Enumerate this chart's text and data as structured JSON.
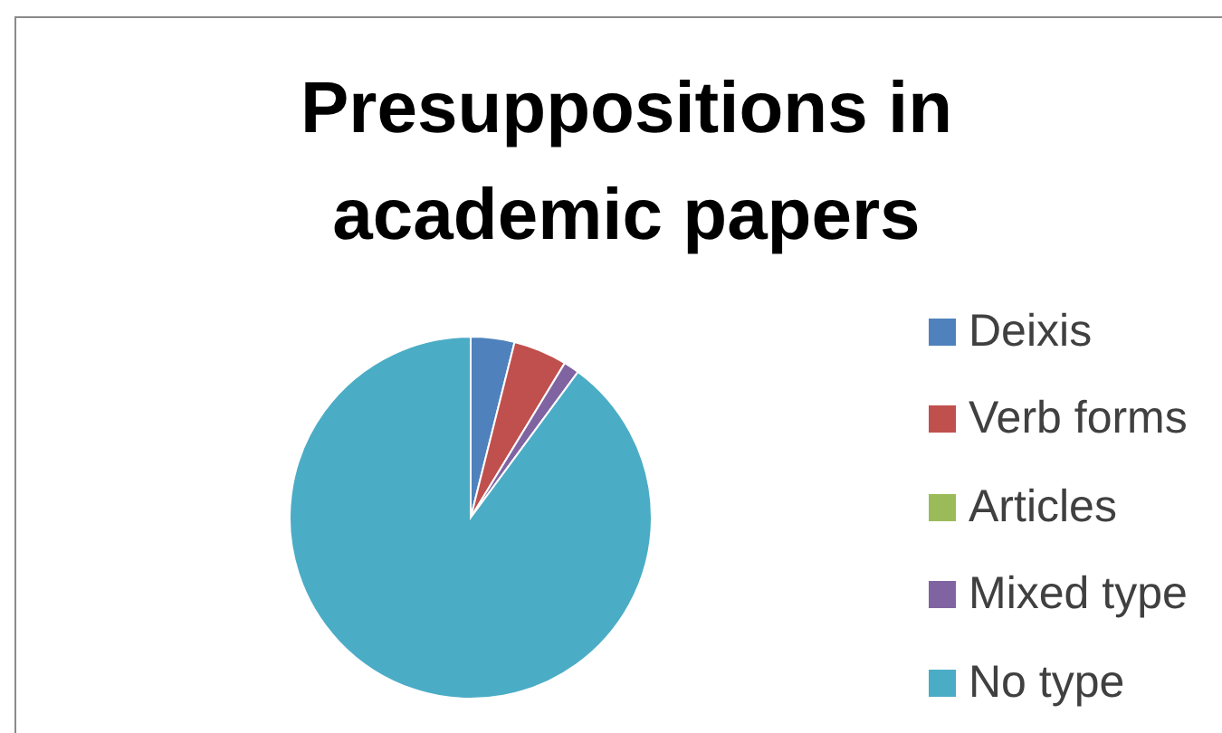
{
  "chart_data": {
    "type": "pie",
    "title": "Presuppositions in academic papers",
    "categories": [
      "Deixis",
      "Verb forms",
      "Articles",
      "Mixed type",
      "No type"
    ],
    "values": [
      3.9,
      4.8,
      0,
      1.4,
      89.9
    ],
    "colors": [
      "#4f81bd",
      "#c0504d",
      "#9bbb59",
      "#8064a2",
      "#4bacc6"
    ],
    "legend": "right"
  }
}
